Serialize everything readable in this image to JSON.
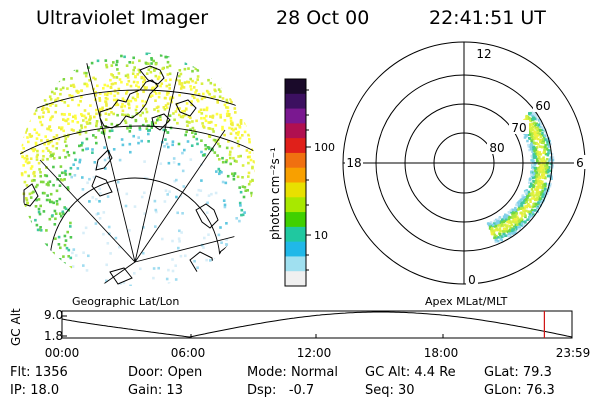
{
  "header": {
    "instrument": "Ultraviolet Imager",
    "date": "28 Oct 00",
    "time": "22:41:51 UT"
  },
  "colorbar": {
    "unit_label": "photon cm⁻²s⁻¹",
    "scale": "log",
    "ticks": [
      {
        "value": 100,
        "label": "100"
      },
      {
        "value": 10,
        "label": "10"
      }
    ],
    "colors": [
      "#1a0a2a",
      "#3c1060",
      "#7a1890",
      "#b01050",
      "#e0201a",
      "#f07010",
      "#f8a000",
      "#e8e000",
      "#a8e800",
      "#40d000",
      "#20c8a0",
      "#20b8e8",
      "#a0e0f0",
      "#f0f0f0"
    ]
  },
  "geo_panel": {
    "label": "Geographic Lat/Lon"
  },
  "polar_panel": {
    "label": "Apex MLat/MLT",
    "mlt_labels": [
      "12",
      "18",
      "6",
      "0"
    ],
    "mlat_labels": [
      "60",
      "70",
      "80"
    ]
  },
  "altitude_plot": {
    "ylabel": "GC Alt",
    "yticks": [
      "9.0",
      "1.8"
    ],
    "xticks": [
      "00:00",
      "06:00",
      "12:00",
      "18:00",
      "23:59"
    ],
    "current_time_hours": 22.7,
    "marker_color": "#d01010"
  },
  "info": {
    "row1": [
      {
        "key": "Flt:",
        "value": "1356"
      },
      {
        "key": "Door:",
        "value": "Open"
      },
      {
        "key": "Mode:",
        "value": "Normal"
      },
      {
        "key": "GC Alt:",
        "value": "4.4 Re"
      },
      {
        "key": "GLat:",
        "value": "79.3"
      }
    ],
    "row2": [
      {
        "key": "IP:",
        "value": "18.0"
      },
      {
        "key": "Gain:",
        "value": "13"
      },
      {
        "key": "Dsp:",
        "value": "-0.7"
      },
      {
        "key": "Seq:",
        "value": "30"
      },
      {
        "key": "GLon:",
        "value": "76.3"
      }
    ]
  }
}
